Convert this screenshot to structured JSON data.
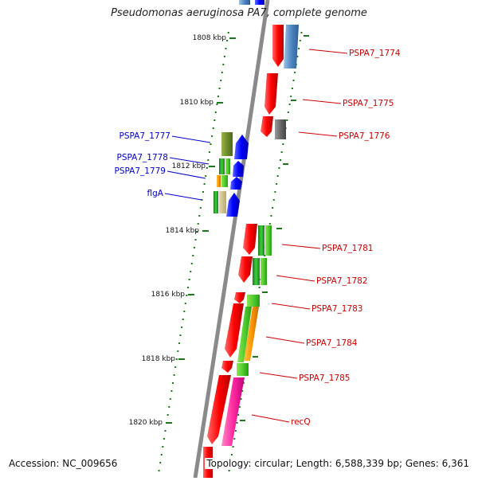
{
  "title": "Pseudomonas aeruginosa PA7, complete genome",
  "accession": "Accession: NC_009656",
  "summary": "Topology: circular; Length: 6,588,339 bp; Genes: 6,361",
  "colors": {
    "backbone": "#8a8a8a",
    "tick": "#1a7a1a",
    "plus_label": "#cc0000",
    "minus_label": "#0000cc"
  },
  "ticks": [
    {
      "label": "1808 kbp"
    },
    {
      "label": "1810 kbp"
    },
    {
      "label": "1812 kbp"
    },
    {
      "label": "1814 kbp"
    },
    {
      "label": "1816 kbp"
    },
    {
      "label": "1818 kbp"
    },
    {
      "label": "1820 kbp"
    }
  ],
  "gene_labels_right": [
    "PSPA7_1774",
    "PSPA7_1775",
    "PSPA7_1776",
    "PSPA7_1781",
    "PSPA7_1782",
    "PSPA7_1783",
    "PSPA7_1784",
    "PSPA7_1785",
    "recQ"
  ],
  "gene_labels_left": [
    "PSPA7_1777",
    "PSPA7_1778",
    "PSPA7_1779",
    "flgA"
  ]
}
